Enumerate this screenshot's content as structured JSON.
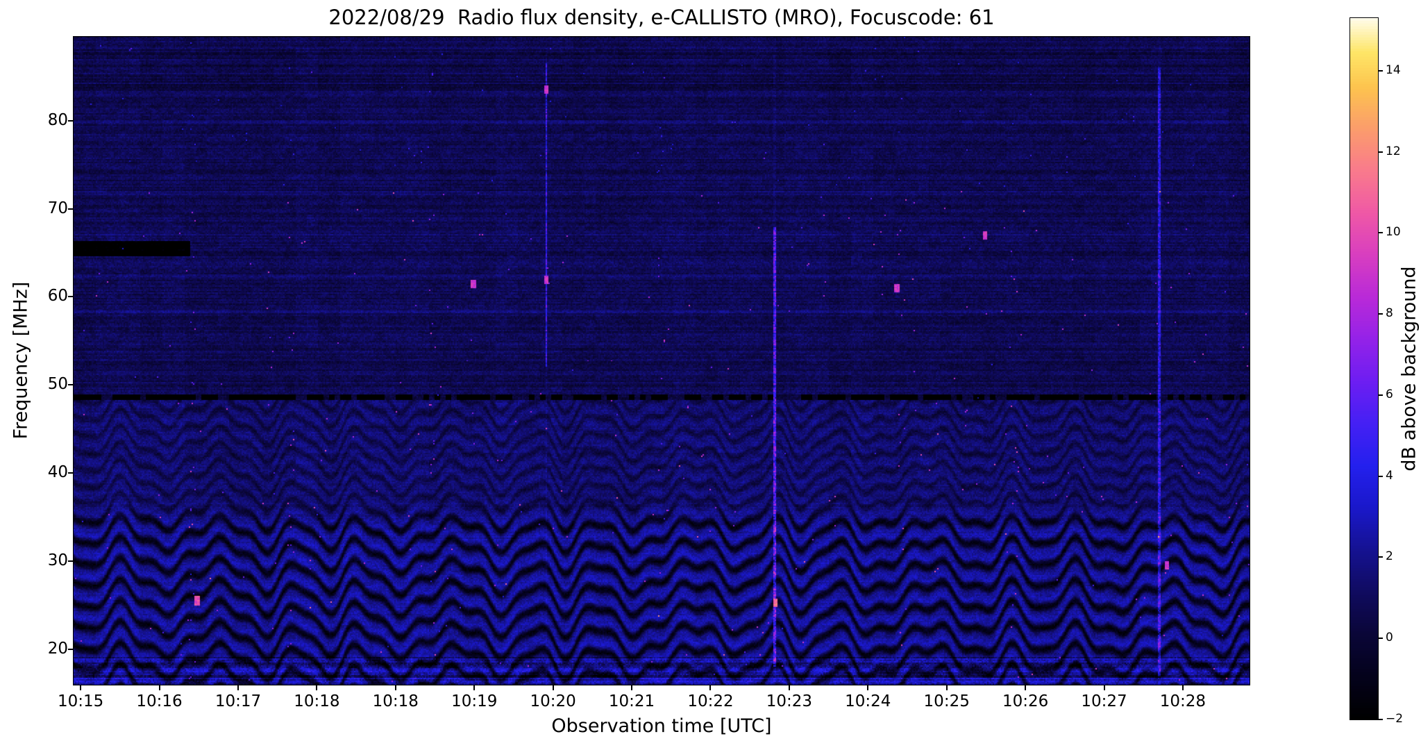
{
  "figure": {
    "title": "2022/08/29  Radio flux density, e-CALLISTO (MRO), Focuscode: 61",
    "xlabel": "Observation time [UTC]",
    "ylabel": "Frequency [MHz]",
    "colorbar_label": "dB above background"
  },
  "chart_data": {
    "type": "heatmap",
    "title": "2022/08/29  Radio flux density, e-CALLISTO (MRO), Focuscode: 61",
    "xlabel": "Observation time [UTC]",
    "ylabel": "Frequency [MHz]",
    "x_tick_labels": [
      "10:15",
      "10:16",
      "10:17",
      "10:18",
      "10:18",
      "10:19",
      "10:20",
      "10:21",
      "10:22",
      "10:23",
      "10:24",
      "10:25",
      "10:26",
      "10:27",
      "10:28"
    ],
    "x_tick_layout": {
      "first_frac": 0.006,
      "step_frac": 0.06695
    },
    "y_tick_values": [
      20,
      30,
      40,
      50,
      60,
      70,
      80
    ],
    "freq_range_mhz": [
      16.0,
      89.5
    ],
    "duration_s": 845,
    "grid": false,
    "colorbar": {
      "label": "dB above background",
      "tick_values": [
        -2,
        0,
        2,
        4,
        6,
        8,
        10,
        12,
        14
      ],
      "tick_labels": [
        "−2",
        "0",
        "2",
        "4",
        "6",
        "8",
        "10",
        "12",
        "14"
      ],
      "value_range": [
        -2,
        15.3
      ],
      "colormap_stops": [
        [
          0.0,
          "#000000"
        ],
        [
          0.06,
          "#04021c"
        ],
        [
          0.12,
          "#0a0638"
        ],
        [
          0.18,
          "#100b60"
        ],
        [
          0.24,
          "#151292"
        ],
        [
          0.3,
          "#1a18ca"
        ],
        [
          0.36,
          "#2420ee"
        ],
        [
          0.42,
          "#4520f4"
        ],
        [
          0.48,
          "#6d1ef2"
        ],
        [
          0.54,
          "#9422e8"
        ],
        [
          0.6,
          "#b92ad8"
        ],
        [
          0.66,
          "#d83ec0"
        ],
        [
          0.72,
          "#ef58a6"
        ],
        [
          0.78,
          "#f97a8c"
        ],
        [
          0.84,
          "#fb9c6c"
        ],
        [
          0.9,
          "#fdc44e"
        ],
        [
          0.95,
          "#fee668"
        ],
        [
          1.0,
          "#fffdf2"
        ]
      ]
    },
    "heatmap_synthesis": {
      "seed": 20220829,
      "background_db": {
        "below_49mhz": 1.15,
        "mid_band": 0.78,
        "above_83mhz": 0.55
      },
      "pixel_noise_db": 1.15,
      "row_streak_db": {
        "mid_band": 0.95,
        "top_band": 1.5,
        "low_band": 0.45,
        "bottom_band": 1.3
      },
      "fringe": {
        "strong_below_mhz": 34,
        "weak_below_mhz": 48.3,
        "spacing_mhz": 2.4,
        "weak_spacing_mhz": 1.9,
        "amplitude_db": 1.9,
        "weak_amplitude_db": 0.7,
        "wobble_period_s": 57,
        "wobble_amplitude_mhz": 1.55,
        "slow_period_s": 173,
        "ripple_period_s": 23.7
      },
      "dark_line": {
        "freq_mhz": 48.6,
        "half_width_mhz": 0.3,
        "depth_db": 4.2,
        "dashed": true
      },
      "dark_patch": {
        "freq_mhz": [
          64.6,
          66.4
        ],
        "time_s": [
          0,
          84
        ],
        "depth_db": 3.4
      },
      "bright_rows_mhz": [
        58.4,
        62.3,
        67.2,
        71.8,
        79.8
      ],
      "bottom_band": {
        "below_mhz": 19.2,
        "stripe_spacing_mhz": 1.15,
        "stripe_db": 1.1,
        "extra_noise_db": 1.6
      },
      "rfi_columns": [
        {
          "time_frac": 0.402,
          "freq_mhz": [
            52,
            86.5
          ],
          "amp_db": 5.5,
          "width_s": 0.9
        },
        {
          "time_frac": 0.596,
          "freq_mhz": [
            18,
            68
          ],
          "amp_db": 7.0,
          "width_s": 0.9
        },
        {
          "time_frac": 0.923,
          "freq_mhz": [
            17,
            86
          ],
          "amp_db": 4.8,
          "width_s": 0.9
        }
      ],
      "speckles": {
        "density": 0.001,
        "amp_db": [
          4.5,
          9.0
        ],
        "column_fracs": [
          0.1,
          0.185,
          0.305,
          0.5,
          0.705,
          0.8
        ]
      },
      "bright_spots": [
        {
          "time_frac": 0.105,
          "freq_mhz": 25.5,
          "amp_db": 9
        },
        {
          "time_frac": 0.597,
          "freq_mhz": 25.3,
          "amp_db": 10
        },
        {
          "time_frac": 0.402,
          "freq_mhz": 62.0,
          "amp_db": 8
        },
        {
          "time_frac": 0.402,
          "freq_mhz": 83.5,
          "amp_db": 8
        },
        {
          "time_frac": 0.34,
          "freq_mhz": 61.5,
          "amp_db": 8
        },
        {
          "time_frac": 0.7,
          "freq_mhz": 61.0,
          "amp_db": 8
        },
        {
          "time_frac": 0.775,
          "freq_mhz": 67.0,
          "amp_db": 8
        },
        {
          "time_frac": 0.93,
          "freq_mhz": 29.5,
          "amp_db": 8
        }
      ]
    }
  }
}
